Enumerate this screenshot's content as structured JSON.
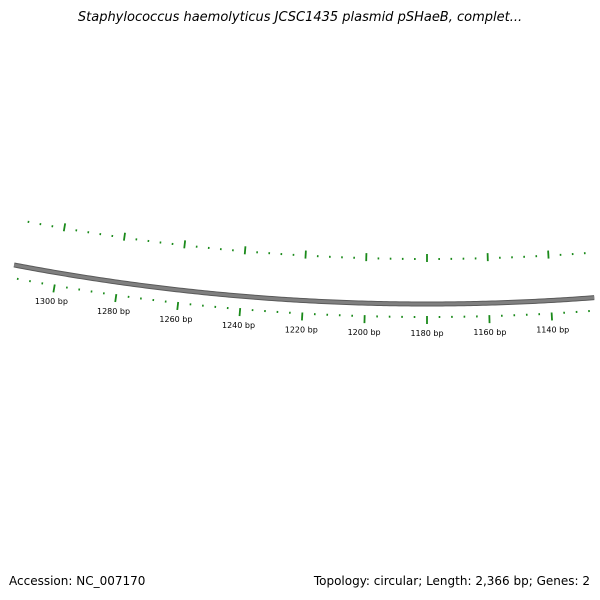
{
  "title": "Staphylococcus haemolyticus JCSC1435 plasmid pSHaeB, complet...",
  "footer": {
    "accession": "Accession: NC_007170",
    "summary": "Topology: circular; Length: 2,366 bp; Genes: 2"
  },
  "colors": {
    "backbone": "#808080",
    "backbone_edge": "#5a5a5a",
    "ticks": "#1a8a1a",
    "text": "#000000"
  },
  "plasmid": {
    "length_bp": 2366,
    "topology": "circular",
    "visible_range_bp": [
      1126,
      1314
    ],
    "major_tick_interval_bp": 20,
    "minor_tick_interval_bp": 4,
    "tick_labels": [
      "1300 bp",
      "1280 bp",
      "1260 bp",
      "1240 bp",
      "1220 bp",
      "1200 bp",
      "1180 bp",
      "1160 bp",
      "1140 bp"
    ]
  }
}
